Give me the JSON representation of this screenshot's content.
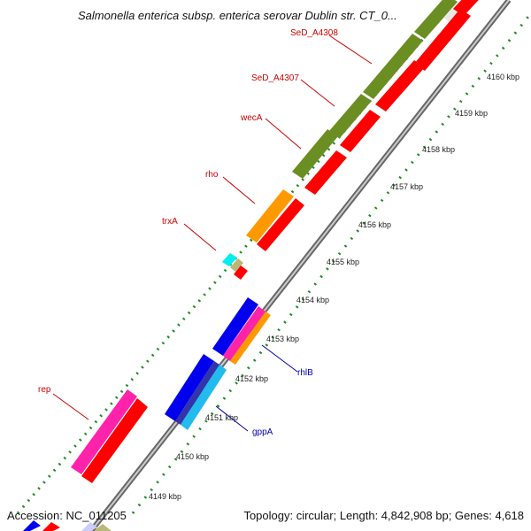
{
  "title": "Salmonella enterica subsp. enterica serovar Dublin str. CT_0...",
  "footer": {
    "accession": "Accession: NC_011205",
    "info": "Topology: circular; Length: 4,842,908 bp; Genes: 4,618"
  },
  "scale_ticks": [
    "4149 kbp",
    "4150 kbp",
    "4151 kbp",
    "4152 kbp",
    "4153 kbp",
    "4154 kbp",
    "4155 kbp",
    "4156 kbp",
    "4157 kbp",
    "4158 kbp",
    "4159 kbp",
    "4160 kbp"
  ],
  "genes": [
    {
      "name": "SeD_A4308",
      "color": "#cc0000"
    },
    {
      "name": "SeD_A4307",
      "color": "#cc0000"
    },
    {
      "name": "wecA",
      "color": "#cc0000"
    },
    {
      "name": "rho",
      "color": "#cc0000"
    },
    {
      "name": "trxA",
      "color": "#cc0000"
    },
    {
      "name": "rep",
      "color": "#cc0000"
    },
    {
      "name": "rhlB",
      "color": "#0000aa"
    },
    {
      "name": "gppA",
      "color": "#0000aa"
    }
  ],
  "colors": {
    "red": "#ff0000",
    "olive": "#6b8e23",
    "orange": "#ff9900",
    "blue": "#0000ee",
    "cyan": "#22bbee",
    "magenta": "#ff22aa",
    "tick_green": "#1e8c1e",
    "backbone": "#888888"
  }
}
